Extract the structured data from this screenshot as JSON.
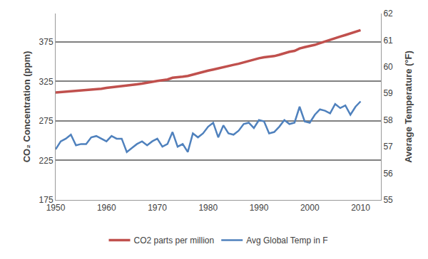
{
  "chart_data": {
    "type": "line",
    "x": [
      1950,
      1951,
      1952,
      1953,
      1954,
      1955,
      1956,
      1957,
      1958,
      1959,
      1960,
      1961,
      1962,
      1963,
      1964,
      1965,
      1966,
      1967,
      1968,
      1969,
      1970,
      1971,
      1972,
      1973,
      1974,
      1975,
      1976,
      1977,
      1978,
      1979,
      1980,
      1981,
      1982,
      1983,
      1984,
      1985,
      1986,
      1987,
      1988,
      1989,
      1990,
      1991,
      1992,
      1993,
      1994,
      1995,
      1996,
      1997,
      1998,
      1999,
      2000,
      2001,
      2002,
      2003,
      2004,
      2005,
      2006,
      2007,
      2008,
      2009,
      2010
    ],
    "x_label": null,
    "y_label": "CO₂ Concentration (ppm)",
    "y2_label": "Average Temperature (°F)",
    "series": [
      {
        "name": "CO2 parts per million",
        "color": "#c0504d",
        "axis": "y",
        "values": [
          311,
          311.5,
          312,
          312.5,
          313,
          313.5,
          314,
          314.5,
          315,
          315.8,
          316.9,
          317.6,
          318.5,
          319,
          319.6,
          320,
          321.4,
          322.2,
          323,
          324.6,
          325.7,
          326.3,
          327.5,
          329.7,
          330.2,
          331.1,
          332,
          333.8,
          335.4,
          336.8,
          338.7,
          340.1,
          341.4,
          343,
          344.6,
          346,
          347.4,
          349.2,
          351.6,
          353.1,
          354.4,
          355.6,
          356.4,
          357.1,
          358.8,
          360.8,
          362.6,
          363.7,
          366.7,
          368.4,
          369.7,
          371.3,
          373.5,
          375.8,
          377.5,
          379.8,
          381.9,
          383.8,
          385.6,
          387.4,
          389.9
        ]
      },
      {
        "name": "Avg Global Temp in F",
        "color": "#4f81bd",
        "axis": "y2",
        "values": [
          56.9,
          57.2,
          57.3,
          57.45,
          57.05,
          57.1,
          57.1,
          57.35,
          57.4,
          57.3,
          57.2,
          57.4,
          57.3,
          57.3,
          56.8,
          56.95,
          57.1,
          57.2,
          57.05,
          57.2,
          57.3,
          57.0,
          57.1,
          57.55,
          57.0,
          57.1,
          56.8,
          57.5,
          57.35,
          57.5,
          57.75,
          57.9,
          57.35,
          57.8,
          57.5,
          57.45,
          57.6,
          57.85,
          57.9,
          57.7,
          58.0,
          57.95,
          57.5,
          57.55,
          57.75,
          58.0,
          57.85,
          57.9,
          58.5,
          57.95,
          57.9,
          58.2,
          58.4,
          58.35,
          58.25,
          58.6,
          58.45,
          58.55,
          58.2,
          58.5,
          58.7
        ]
      }
    ],
    "xlim": [
      1950,
      2014
    ],
    "xticks": [
      1950,
      1960,
      1970,
      1980,
      1990,
      2000,
      2010
    ],
    "ylim": [
      175,
      411
    ],
    "yticks": [
      175,
      225,
      275,
      325,
      375
    ],
    "y2lim": [
      55,
      62
    ],
    "y2ticks": [
      55,
      56,
      57,
      58,
      59,
      60,
      61,
      62
    ],
    "grid": true,
    "legend": "bottom"
  }
}
